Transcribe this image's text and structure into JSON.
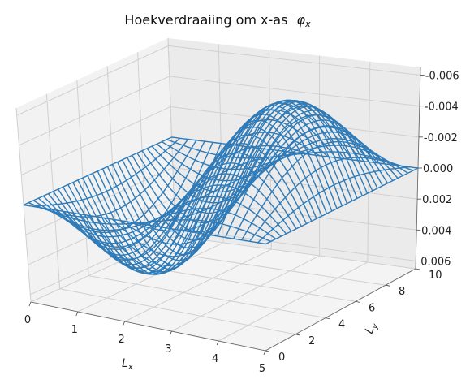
{
  "chart_data": {
    "type": "wireframe-3d",
    "title": "Hoekverdraaiing om x-as",
    "title_symbol": "φ",
    "title_symbol_sub": "x",
    "xlabel": "L",
    "xlabel_sub": "x",
    "ylabel": "L",
    "ylabel_sub": "y",
    "x_ticks": [
      "0",
      "1",
      "2",
      "3",
      "4",
      "5"
    ],
    "y_ticks": [
      "0",
      "2",
      "4",
      "6",
      "8",
      "10"
    ],
    "z_ticks": [
      "-0.006",
      "-0.004",
      "-0.002",
      "0.000",
      "0.002",
      "0.004",
      "0.006"
    ],
    "xlim": [
      0,
      5
    ],
    "ylim": [
      0,
      10
    ],
    "zlim": [
      -0.0065,
      0.0065
    ],
    "z_inverted": true,
    "surface": {
      "function": "amplitude * sin(2*pi*x/Lx) * sin(pi*y/Ly)",
      "amplitude": 0.006,
      "Lx": 5,
      "Ly": 10,
      "x_lines": 31,
      "y_lines": 31
    },
    "grid": true,
    "color": "#2f7bb8"
  }
}
